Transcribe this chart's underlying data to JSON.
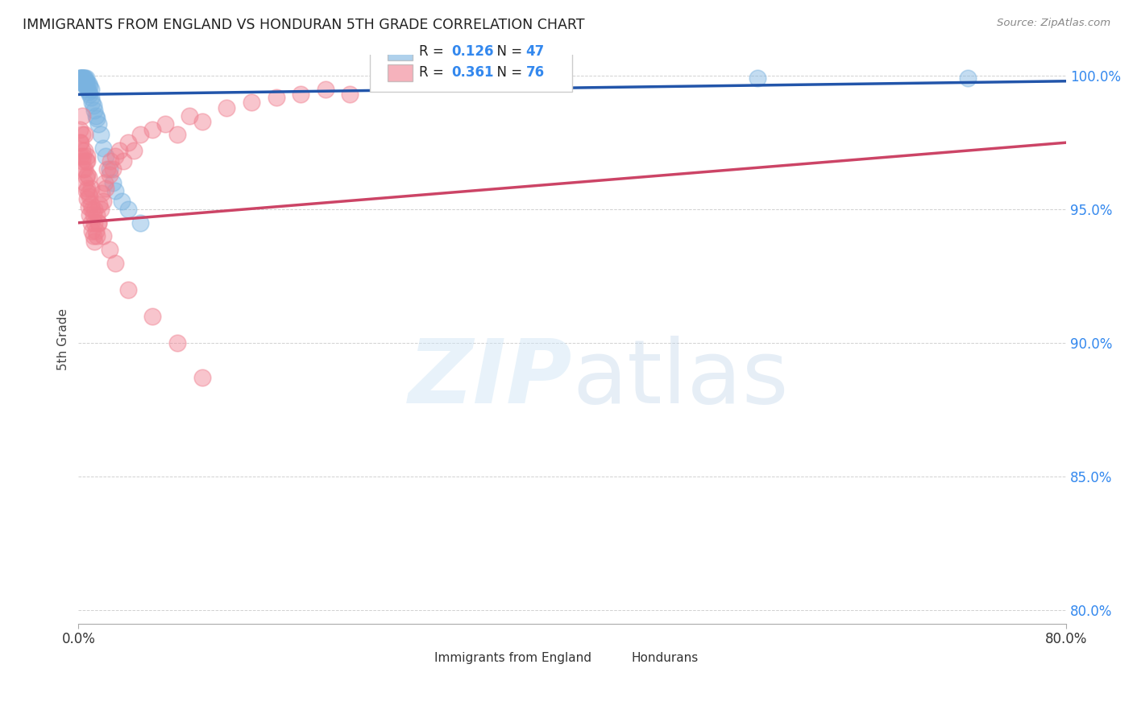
{
  "title": "IMMIGRANTS FROM ENGLAND VS HONDURAN 5TH GRADE CORRELATION CHART",
  "source": "Source: ZipAtlas.com",
  "ylabel": "5th Grade",
  "x_min": 0.0,
  "x_max": 0.8,
  "y_min": 0.795,
  "y_max": 1.008,
  "yticks": [
    0.8,
    0.85,
    0.9,
    0.95,
    1.0
  ],
  "ytick_labels": [
    "80.0%",
    "85.0%",
    "90.0%",
    "95.0%",
    "100.0%"
  ],
  "xtick_labels": [
    "0.0%",
    "80.0%"
  ],
  "xtick_vals": [
    0.0,
    0.8
  ],
  "england_R": 0.126,
  "england_N": 47,
  "honduran_R": 0.361,
  "honduran_N": 76,
  "england_color": "#7ab3e0",
  "honduran_color": "#f08090",
  "england_line_color": "#2255aa",
  "honduran_line_color": "#cc4466",
  "eng_trend_x0": 0.0,
  "eng_trend_y0": 0.993,
  "eng_trend_x1": 0.8,
  "eng_trend_y1": 0.998,
  "hon_trend_x0": 0.0,
  "hon_trend_y0": 0.945,
  "hon_trend_x1": 0.8,
  "hon_trend_y1": 0.975,
  "england_x": [
    0.001,
    0.001,
    0.002,
    0.002,
    0.002,
    0.002,
    0.003,
    0.003,
    0.003,
    0.003,
    0.003,
    0.004,
    0.004,
    0.004,
    0.004,
    0.005,
    0.005,
    0.005,
    0.005,
    0.006,
    0.006,
    0.006,
    0.007,
    0.007,
    0.008,
    0.008,
    0.009,
    0.009,
    0.01,
    0.01,
    0.011,
    0.012,
    0.013,
    0.014,
    0.015,
    0.016,
    0.018,
    0.02,
    0.022,
    0.025,
    0.028,
    0.03,
    0.035,
    0.04,
    0.05,
    0.55,
    0.72
  ],
  "england_y": [
    0.999,
    0.998,
    0.999,
    0.998,
    0.999,
    0.999,
    0.999,
    0.998,
    0.999,
    0.998,
    0.999,
    0.998,
    0.999,
    0.997,
    0.999,
    0.997,
    0.998,
    0.999,
    0.999,
    0.996,
    0.998,
    0.999,
    0.995,
    0.997,
    0.994,
    0.997,
    0.993,
    0.996,
    0.992,
    0.995,
    0.99,
    0.989,
    0.987,
    0.985,
    0.984,
    0.982,
    0.978,
    0.973,
    0.97,
    0.965,
    0.96,
    0.957,
    0.953,
    0.95,
    0.945,
    0.999,
    0.999
  ],
  "honduran_x": [
    0.001,
    0.001,
    0.002,
    0.002,
    0.003,
    0.003,
    0.003,
    0.004,
    0.004,
    0.005,
    0.005,
    0.005,
    0.006,
    0.006,
    0.006,
    0.007,
    0.007,
    0.007,
    0.007,
    0.008,
    0.008,
    0.008,
    0.009,
    0.009,
    0.01,
    0.01,
    0.011,
    0.011,
    0.012,
    0.012,
    0.013,
    0.013,
    0.014,
    0.015,
    0.015,
    0.016,
    0.017,
    0.018,
    0.019,
    0.02,
    0.021,
    0.022,
    0.023,
    0.025,
    0.026,
    0.028,
    0.03,
    0.033,
    0.036,
    0.04,
    0.045,
    0.05,
    0.06,
    0.07,
    0.08,
    0.09,
    0.1,
    0.12,
    0.14,
    0.16,
    0.18,
    0.2,
    0.22,
    0.003,
    0.005,
    0.007,
    0.01,
    0.013,
    0.016,
    0.02,
    0.025,
    0.03,
    0.04,
    0.06,
    0.08,
    0.1
  ],
  "honduran_y": [
    0.98,
    0.975,
    0.97,
    0.975,
    0.968,
    0.972,
    0.978,
    0.965,
    0.97,
    0.96,
    0.965,
    0.972,
    0.957,
    0.962,
    0.968,
    0.954,
    0.958,
    0.963,
    0.97,
    0.951,
    0.956,
    0.962,
    0.948,
    0.955,
    0.945,
    0.952,
    0.942,
    0.95,
    0.94,
    0.948,
    0.938,
    0.945,
    0.942,
    0.94,
    0.948,
    0.945,
    0.952,
    0.95,
    0.956,
    0.953,
    0.96,
    0.958,
    0.965,
    0.963,
    0.968,
    0.965,
    0.97,
    0.972,
    0.968,
    0.975,
    0.972,
    0.978,
    0.98,
    0.982,
    0.978,
    0.985,
    0.983,
    0.988,
    0.99,
    0.992,
    0.993,
    0.995,
    0.993,
    0.985,
    0.978,
    0.968,
    0.958,
    0.95,
    0.945,
    0.94,
    0.935,
    0.93,
    0.92,
    0.91,
    0.9,
    0.887
  ]
}
